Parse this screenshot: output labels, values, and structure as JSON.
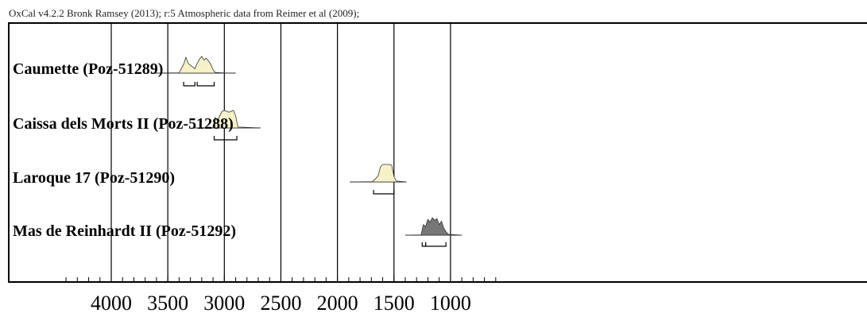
{
  "header": {
    "text": "OxCal v4.2.2 Bronk Ramsey (2013); r:5 Atmospheric data from Reimer et al (2009);"
  },
  "colors": {
    "light_fill": "#f7f1c8",
    "dark_fill": "#777777",
    "line": "#000000",
    "frame": "#000000"
  },
  "chart_data": {
    "type": "area",
    "title": "",
    "xlabel": "",
    "ylabel": "",
    "x_reversed": true,
    "xlim": [
      4450,
      600
    ],
    "major_ticks": [
      4000,
      3500,
      3000,
      2500,
      2000,
      1500,
      1000
    ],
    "tick_labels": [
      "4000",
      "3500",
      "3000",
      "2500",
      "2000",
      "1500",
      "1000"
    ],
    "minor_tick_step": 100,
    "grid": true,
    "series": [
      {
        "name": "Caumette (Poz-51289)",
        "style": "light",
        "range": [
          3650,
          2900
        ],
        "x": [
          3650,
          3400,
          3360,
          3340,
          3320,
          3300,
          3280,
          3260,
          3240,
          3220,
          3200,
          3180,
          3160,
          3140,
          3120,
          3100,
          3080,
          3000,
          2900
        ],
        "y": [
          0,
          0.02,
          0.5,
          0.9,
          0.55,
          0.45,
          0.35,
          0.25,
          0.55,
          0.8,
          0.95,
          0.75,
          0.85,
          0.7,
          0.5,
          0.2,
          0.03,
          0.01,
          0
        ],
        "hpd_ranges": [
          [
            3360,
            3260
          ],
          [
            3240,
            3090
          ]
        ]
      },
      {
        "name": "Caissa dels Morts II (Poz-51288)",
        "style": "light",
        "range": [
          3280,
          2680
        ],
        "x": [
          3280,
          3100,
          3090,
          3080,
          3060,
          3040,
          3020,
          3000,
          2980,
          2960,
          2940,
          2920,
          2900,
          2880,
          2680
        ],
        "y": [
          0,
          0.02,
          0.3,
          0.6,
          0.4,
          0.7,
          0.95,
          1.0,
          0.95,
          0.9,
          0.95,
          1.0,
          0.7,
          0.05,
          0
        ],
        "hpd_ranges": [
          [
            3090,
            2890
          ]
        ]
      },
      {
        "name": "Laroque 17 (Poz-51290)",
        "style": "light",
        "range": [
          1890,
          1390
        ],
        "x": [
          1890,
          1690,
          1660,
          1640,
          1620,
          1600,
          1580,
          1560,
          1540,
          1520,
          1500,
          1480,
          1390
        ],
        "y": [
          0,
          0.02,
          0.2,
          0.35,
          0.85,
          1.0,
          1.0,
          1.0,
          1.0,
          0.95,
          0.3,
          0.05,
          0
        ],
        "hpd_ranges": [
          [
            1680,
            1500
          ]
        ]
      },
      {
        "name": "Mas de Reinhardt II (Poz-51292)",
        "style": "dark",
        "range": [
          1400,
          900
        ],
        "x": [
          1400,
          1260,
          1240,
          1220,
          1200,
          1180,
          1160,
          1140,
          1120,
          1100,
          1080,
          1060,
          1040,
          1020,
          900
        ],
        "y": [
          0,
          0.02,
          0.6,
          0.5,
          0.9,
          0.75,
          1.0,
          0.85,
          0.95,
          0.6,
          0.8,
          0.4,
          0.2,
          0.05,
          0
        ],
        "hpd_ranges": [
          [
            1250,
            1220
          ],
          [
            1220,
            1040
          ]
        ]
      }
    ]
  }
}
